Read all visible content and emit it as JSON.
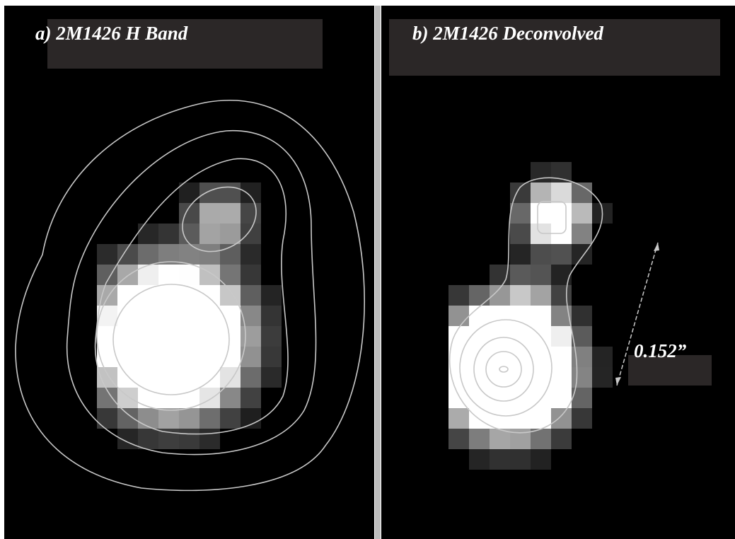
{
  "panels": [
    {
      "label": "a) 2M1426 H Band"
    },
    {
      "label": "b) 2M1426 Deconvolved"
    }
  ],
  "scale_bar": {
    "label": "0.152”"
  }
}
